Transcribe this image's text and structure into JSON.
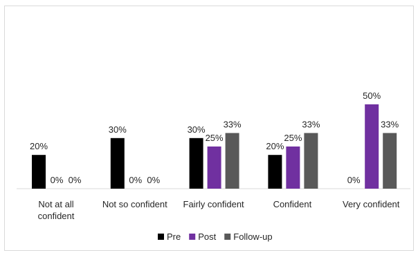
{
  "chart_data": {
    "type": "bar",
    "categories": [
      [
        "Not at all",
        "confident"
      ],
      [
        "Not so confident"
      ],
      [
        "Fairly confident"
      ],
      [
        "Confident"
      ],
      [
        "Very confident"
      ]
    ],
    "series": [
      {
        "name": "Pre",
        "values": [
          20,
          30,
          30,
          20,
          0
        ],
        "labels": [
          "20%",
          "30%",
          "30%",
          "20%",
          "0%"
        ],
        "color": "#000000"
      },
      {
        "name": "Post",
        "values": [
          0,
          0,
          25,
          25,
          50
        ],
        "labels": [
          "0%",
          "0%",
          "25%",
          "25%",
          "50%"
        ],
        "color": "#7030a0"
      },
      {
        "name": "Follow-up",
        "values": [
          0,
          0,
          33,
          33,
          33
        ],
        "labels": [
          "0%",
          "0%",
          "33%",
          "33%",
          "33%"
        ],
        "color": "#595959"
      }
    ],
    "title": "",
    "xlabel": "",
    "ylabel": "",
    "ylim": [
      0,
      100
    ],
    "grid": false,
    "legend_position": "bottom",
    "axis_color": "#d9d9d9",
    "label_color": "#262626"
  }
}
